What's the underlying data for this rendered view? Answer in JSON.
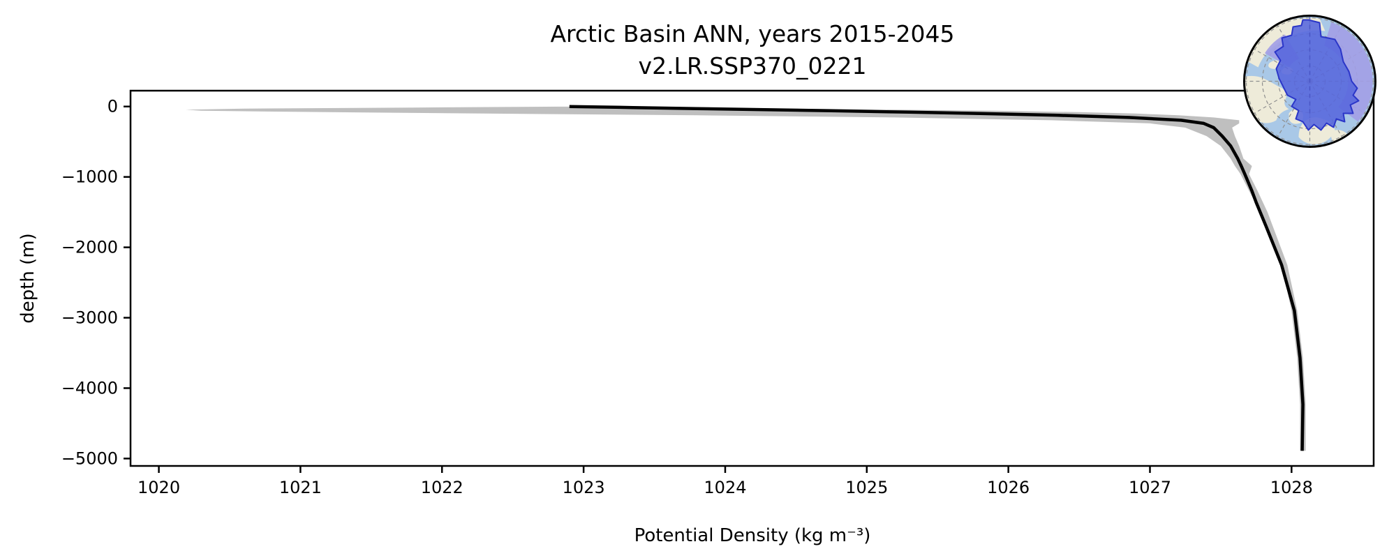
{
  "figure": {
    "title": "Arctic Basin ANN, years 2015-2045",
    "subtitle": "v2.LR.SSP370_0221"
  },
  "chart_data": {
    "type": "line",
    "title": "Arctic Basin ANN, years 2015-2045",
    "subtitle": "v2.LR.SSP370_0221",
    "xlabel": "Potential Density (kg m⁻³)",
    "ylabel": "depth (m)",
    "xlim": [
      1019.8,
      1028.58
    ],
    "ylim": [
      -5105,
      225
    ],
    "xticks": [
      1020,
      1021,
      1022,
      1023,
      1024,
      1025,
      1026,
      1027,
      1028
    ],
    "xtick_labels": [
      "1020",
      "1021",
      "1022",
      "1023",
      "1024",
      "1025",
      "1026",
      "1027",
      "1028"
    ],
    "yticks": [
      0,
      -1000,
      -2000,
      -3000,
      -4000,
      -5000
    ],
    "ytick_labels": [
      "0",
      "−1000",
      "−2000",
      "−3000",
      "−4000",
      "−5000"
    ],
    "grid": false,
    "legend": "none",
    "series": [
      {
        "name": "ensemble-spread-band",
        "type": "band",
        "color": "#bcbcbc",
        "opacity": 0.95,
        "depth": [
          -2,
          -15,
          -30,
          -45,
          -60,
          -80,
          -100,
          -125,
          -155,
          -195,
          -240,
          -300,
          -420,
          -560,
          -740,
          -845,
          -960,
          -1200,
          -1500,
          -2250,
          -2900,
          -3570,
          -4230,
          -4890
        ],
        "x_lo": [
          1022.82,
          1021.8,
          1020.6,
          1020.19,
          1020.3,
          1021.2,
          1022.3,
          1023.8,
          1025.2,
          1026.3,
          1027.0,
          1027.25,
          1027.4,
          1027.5,
          1027.57,
          1027.6,
          1027.64,
          1027.7,
          1027.78,
          1027.93,
          1028.0,
          1028.04,
          1028.06,
          1028.06
        ],
        "x_hi": [
          1023.0,
          1023.6,
          1024.4,
          1025.2,
          1025.9,
          1026.5,
          1026.9,
          1027.2,
          1027.45,
          1027.63,
          1027.63,
          1027.58,
          1027.6,
          1027.63,
          1027.66,
          1027.72,
          1027.7,
          1027.76,
          1027.83,
          1027.97,
          1028.04,
          1028.08,
          1028.1,
          1028.1
        ]
      },
      {
        "name": "ensemble-mean-profile",
        "type": "line",
        "color": "#000000",
        "width": 4.5,
        "depth": [
          0,
          -15,
          -30,
          -45,
          -60,
          -80,
          -100,
          -125,
          -155,
          -195,
          -240,
          -300,
          -420,
          -560,
          -740,
          -845,
          -960,
          -1200,
          -1360,
          -1700,
          -2250,
          -2900,
          -3570,
          -4230,
          -4890
        ],
        "density": [
          1022.9,
          1023.35,
          1023.8,
          1024.28,
          1024.75,
          1025.3,
          1025.8,
          1026.35,
          1026.85,
          1027.22,
          1027.38,
          1027.45,
          1027.51,
          1027.57,
          1027.62,
          1027.645,
          1027.67,
          1027.72,
          1027.75,
          1027.82,
          1027.93,
          1028.02,
          1028.06,
          1028.08,
          1028.075
        ]
      }
    ],
    "inset": {
      "name": "arctic-basin-locator-map",
      "description": "North-polar stereographic locator map with the Arctic Basin region highlighted",
      "colors": {
        "ocean": "#a9c8e7",
        "land": "#eeebd9",
        "region": "#5766dd",
        "region_fringe": "#a29ee6",
        "region_outline": "#2b36c8",
        "graticule": "#8f8f8f",
        "meridian": "#4550c0",
        "ring": "#000000"
      }
    },
    "axis_color": "#000000",
    "background": "#ffffff"
  }
}
